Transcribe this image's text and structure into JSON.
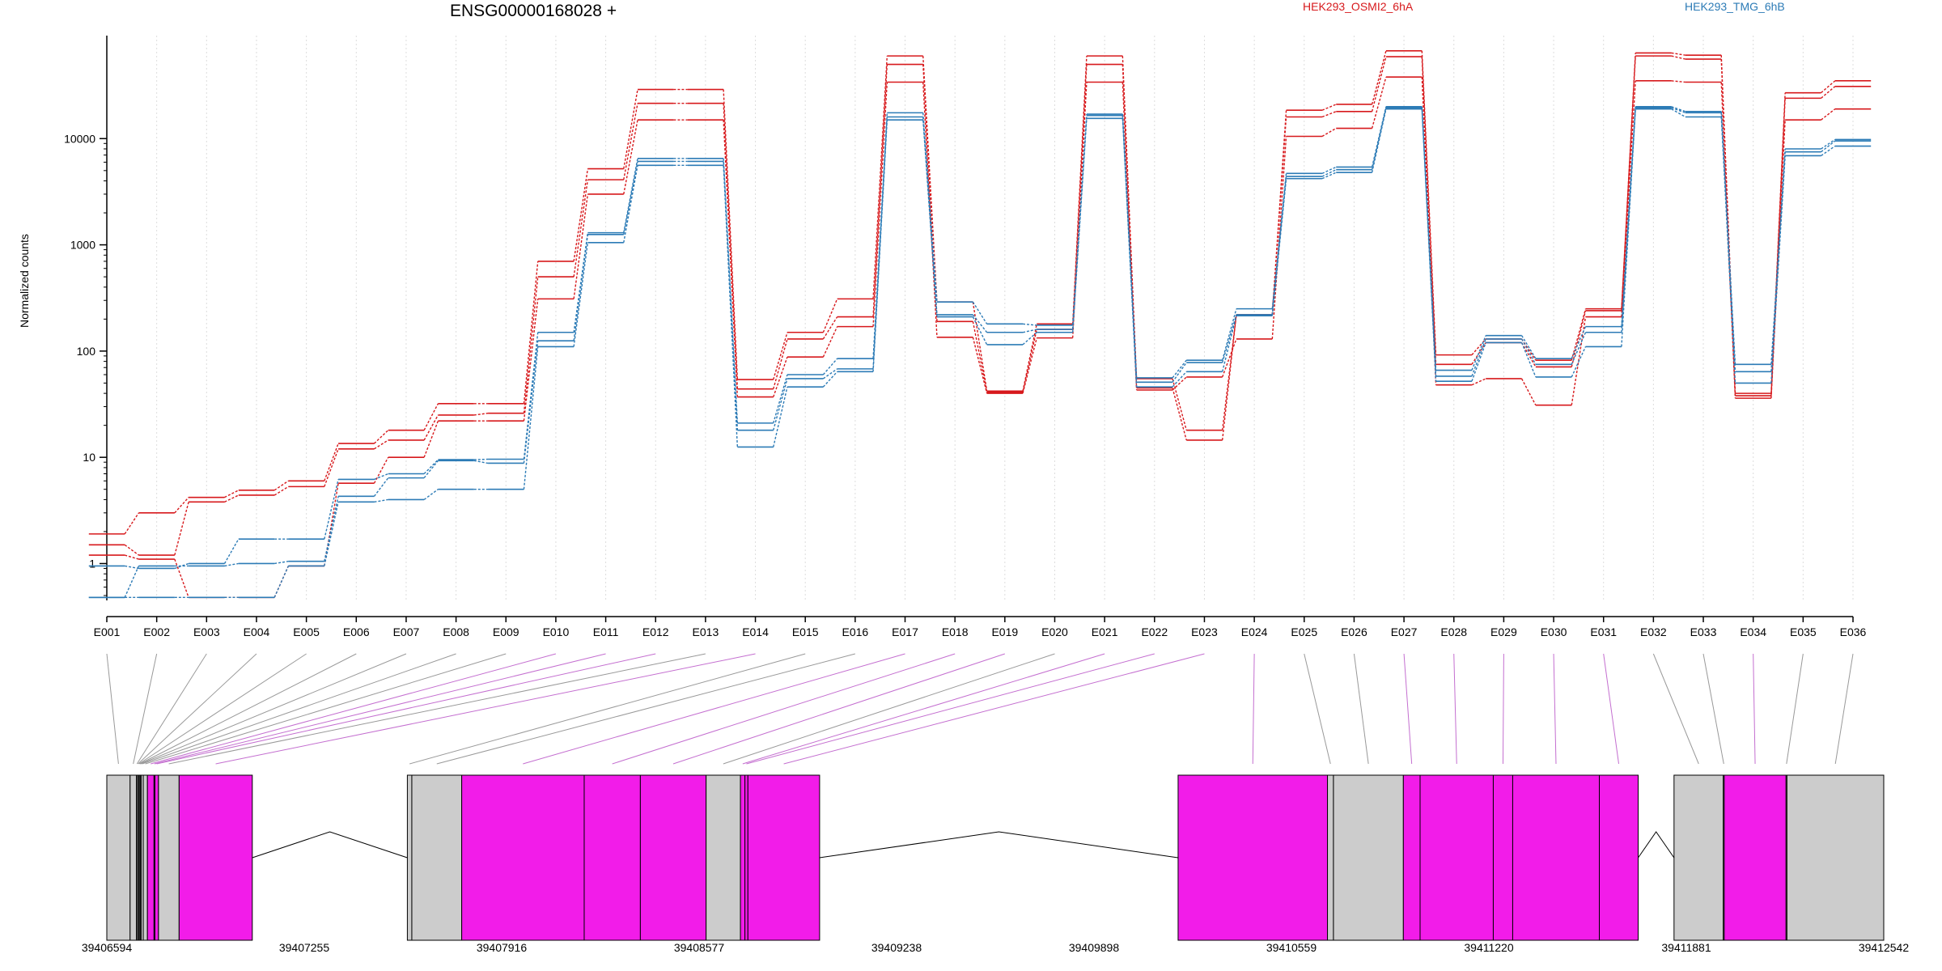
{
  "chart_data": {
    "type": "line",
    "title": "ENSG00000168028 +",
    "ylabel": "Normalized counts",
    "xlabel": "",
    "yscale": "log",
    "ylim": [
      0.45,
      90000
    ],
    "y_ticks": [
      1,
      10,
      100,
      1000,
      10000
    ],
    "y_tick_labels": [
      "1",
      "10",
      "100",
      "1000",
      "10000"
    ],
    "categories": [
      "E001",
      "E002",
      "E003",
      "E004",
      "E005",
      "E006",
      "E007",
      "E008",
      "E009",
      "E010",
      "E011",
      "E012",
      "E013",
      "E014",
      "E015",
      "E016",
      "E017",
      "E018",
      "E019",
      "E020",
      "E021",
      "E022",
      "E023",
      "E024",
      "E025",
      "E026",
      "E027",
      "E028",
      "E029",
      "E030",
      "E031",
      "E032",
      "E033",
      "E034",
      "E035",
      "E036"
    ],
    "legend": [
      {
        "name": "HEK293_OSMI2_6hA",
        "color": "#d7191c"
      },
      {
        "name": "HEK293_TMG_6hB",
        "color": "#2c7bb6"
      }
    ],
    "series": [
      {
        "name": "HEK293_OSMI2_6hA",
        "color": "#d7191c",
        "values": [
          1.9,
          3.0,
          4.2,
          4.9,
          6.0,
          13.5,
          18,
          32,
          32,
          700,
          5200,
          29000,
          29000,
          54,
          150,
          310,
          60000,
          290,
          42,
          180,
          60000,
          55,
          18,
          220,
          18500,
          21000,
          67000,
          92,
          130,
          82,
          250,
          64000,
          61000,
          40,
          27000,
          35000
        ]
      },
      {
        "name": "HEK293_OSMI2_6hA",
        "color": "#d7191c",
        "values": [
          1.5,
          1.2,
          3.8,
          4.4,
          5.3,
          12,
          14.5,
          25,
          26,
          500,
          4100,
          21500,
          21500,
          44,
          130,
          210,
          50000,
          190,
          41,
          160,
          50000,
          45,
          14.5,
          220,
          16000,
          18000,
          59000,
          75,
          120,
          71,
          240,
          60000,
          56000,
          38,
          24000,
          31000
        ]
      },
      {
        "name": "HEK293_OSMI2_6hA",
        "color": "#d7191c",
        "values": [
          1.2,
          1.1,
          0.48,
          0.48,
          0.95,
          5.7,
          10,
          22,
          22,
          310,
          3000,
          15000,
          15000,
          37,
          88,
          170,
          34000,
          135,
          40,
          133,
          34000,
          43,
          57,
          130,
          10500,
          12500,
          38000,
          48,
          55,
          31,
          210,
          35000,
          34000,
          36,
          15000,
          19000
        ]
      },
      {
        "name": "HEK293_TMG_6hB",
        "color": "#2c7bb6",
        "values": [
          0.95,
          0.9,
          1.0,
          1.7,
          1.7,
          6.2,
          7.0,
          9.5,
          9.6,
          150,
          1300,
          6500,
          6500,
          21,
          60,
          85,
          17500,
          290,
          180,
          175,
          17000,
          56,
          82,
          250,
          4700,
          5400,
          20000,
          66,
          140,
          85,
          170,
          20000,
          18000,
          75,
          8000,
          9800
        ]
      },
      {
        "name": "HEK293_TMG_6hB",
        "color": "#2c7bb6",
        "values": [
          0.48,
          0.95,
          0.95,
          1.0,
          1.05,
          4.3,
          6.4,
          9.3,
          8.8,
          125,
          1250,
          6100,
          6100,
          18,
          55,
          68,
          16000,
          220,
          150,
          160,
          16500,
          51,
          78,
          220,
          4400,
          5100,
          19500,
          58,
          130,
          75,
          150,
          19500,
          17500,
          64,
          7500,
          9500
        ]
      },
      {
        "name": "HEK293_TMG_6hB",
        "color": "#2c7bb6",
        "values": [
          0.48,
          0.48,
          0.48,
          0.48,
          0.95,
          3.8,
          4.0,
          5.0,
          5.0,
          110,
          1050,
          5600,
          5600,
          12.5,
          46,
          64,
          15000,
          210,
          115,
          150,
          15500,
          46,
          64,
          215,
          4200,
          4800,
          19000,
          52,
          120,
          57,
          110,
          19000,
          16000,
          50,
          6900,
          8500
        ]
      }
    ],
    "genomic_axis": {
      "tick_labels": [
        "39406594",
        "39407255",
        "39407916",
        "39408577",
        "39409238",
        "39409898",
        "39410559",
        "39411220",
        "39411881",
        "39412542"
      ]
    },
    "exons": [
      {
        "id": "E001",
        "start": 39406594,
        "end": 39406672,
        "testable": false
      },
      {
        "id": "E002",
        "start": 39406672,
        "end": 39406693,
        "testable": false
      },
      {
        "id": "E003",
        "start": 39406693,
        "end": 39406697,
        "testable": false
      },
      {
        "id": "E004",
        "start": 39406697,
        "end": 39406700,
        "testable": false
      },
      {
        "id": "E005",
        "start": 39406700,
        "end": 39406703,
        "testable": false
      },
      {
        "id": "E006",
        "start": 39406703,
        "end": 39406706,
        "testable": false
      },
      {
        "id": "E007",
        "start": 39406706,
        "end": 39406709,
        "testable": false
      },
      {
        "id": "E008",
        "start": 39406709,
        "end": 39406716,
        "testable": false
      },
      {
        "id": "E009",
        "start": 39406716,
        "end": 39406730,
        "testable": false
      },
      {
        "id": "E010",
        "start": 39406730,
        "end": 39406752,
        "testable": true
      },
      {
        "id": "E011",
        "start": 39406752,
        "end": 39406755,
        "testable": true
      },
      {
        "id": "E012",
        "start": 39406755,
        "end": 39406767,
        "testable": true
      },
      {
        "id": "E013",
        "start": 39406767,
        "end": 39406836,
        "testable": false
      },
      {
        "id": "E014",
        "start": 39406836,
        "end": 39407081,
        "testable": true
      },
      {
        "id": "E015",
        "start": 39407600,
        "end": 39407615,
        "testable": false
      },
      {
        "id": "E016",
        "start": 39407615,
        "end": 39407782,
        "testable": false
      },
      {
        "id": "E017",
        "start": 39407782,
        "end": 39408192,
        "testable": true
      },
      {
        "id": "E018",
        "start": 39408192,
        "end": 39408380,
        "testable": true
      },
      {
        "id": "E019",
        "start": 39408380,
        "end": 39408600,
        "testable": true
      },
      {
        "id": "E020",
        "start": 39408600,
        "end": 39408715,
        "testable": false
      },
      {
        "id": "E021",
        "start": 39408715,
        "end": 39408730,
        "testable": true
      },
      {
        "id": "E022",
        "start": 39408730,
        "end": 39408740,
        "testable": true
      },
      {
        "id": "E023",
        "start": 39408740,
        "end": 39408980,
        "testable": true
      },
      {
        "id": "E024",
        "start": 39410180,
        "end": 39410680,
        "testable": true
      },
      {
        "id": "E025",
        "start": 39410680,
        "end": 39410700,
        "testable": false
      },
      {
        "id": "E026",
        "start": 39410700,
        "end": 39410934,
        "testable": false
      },
      {
        "id": "E027",
        "start": 39410934,
        "end": 39410990,
        "testable": true
      },
      {
        "id": "E028",
        "start": 39410990,
        "end": 39411235,
        "testable": true
      },
      {
        "id": "E029",
        "start": 39411235,
        "end": 39411300,
        "testable": true
      },
      {
        "id": "E030",
        "start": 39411300,
        "end": 39411590,
        "testable": true
      },
      {
        "id": "E031",
        "start": 39411590,
        "end": 39411720,
        "testable": true
      },
      {
        "id": "E032",
        "start": 39411840,
        "end": 39412005,
        "testable": false
      },
      {
        "id": "E033",
        "start": 39412005,
        "end": 39412008,
        "testable": false
      },
      {
        "id": "E034",
        "start": 39412008,
        "end": 39412215,
        "testable": true
      },
      {
        "id": "E035",
        "start": 39412215,
        "end": 39412218,
        "testable": false
      },
      {
        "id": "E036",
        "start": 39412218,
        "end": 39412542,
        "testable": false
      }
    ],
    "introns": [
      {
        "start": 39407081,
        "end": 39407600
      },
      {
        "start": 39408980,
        "end": 39410180
      },
      {
        "start": 39411720,
        "end": 39411840
      }
    ],
    "colors": {
      "testable_exon": "#f21ce9",
      "other_exon": "#cccccc",
      "connector_testable": "#c46fd0",
      "connector_other": "#999999"
    }
  }
}
